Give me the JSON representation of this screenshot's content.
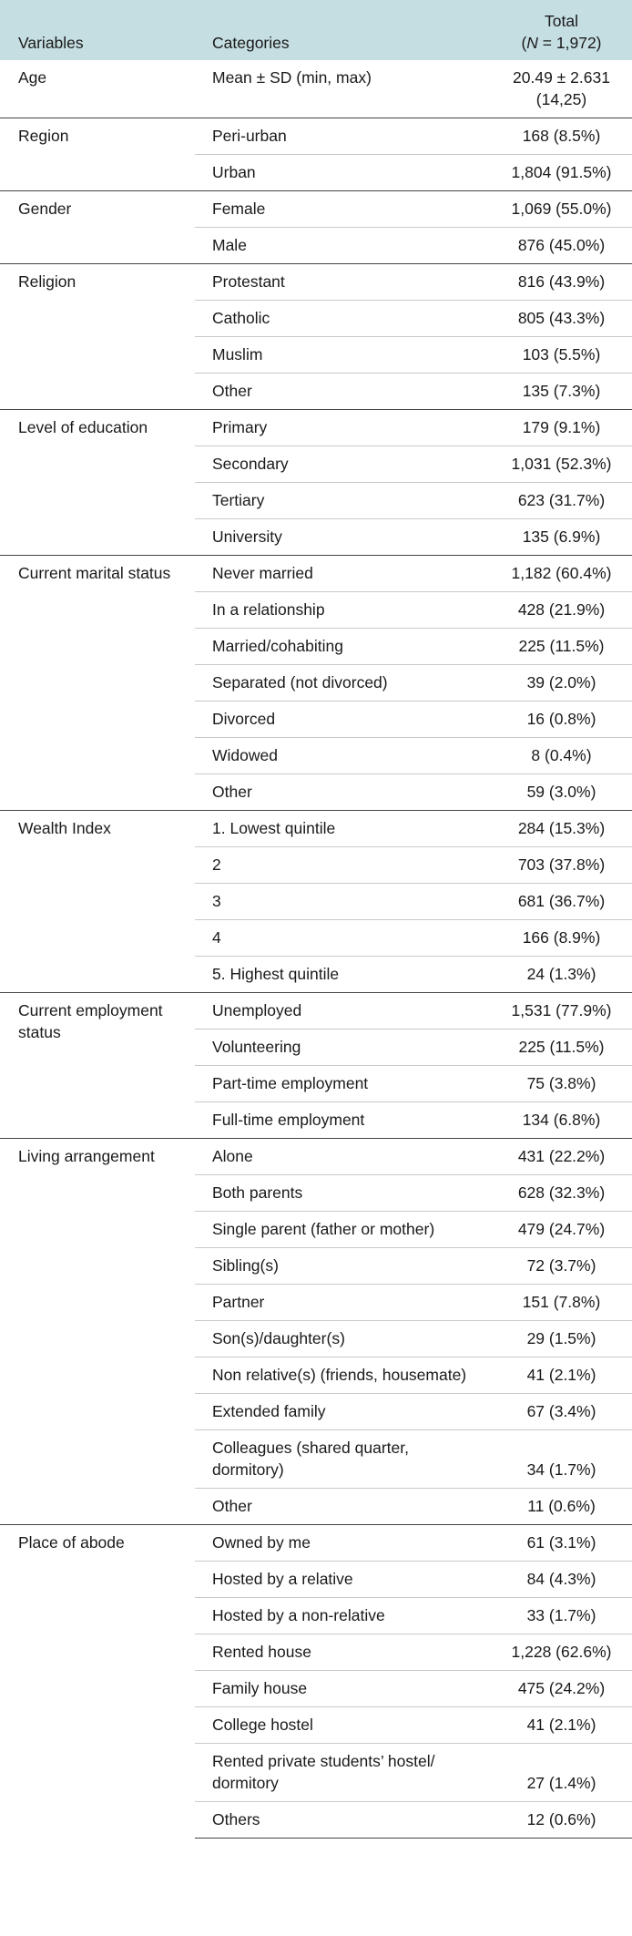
{
  "header": {
    "variables": "Variables",
    "categories": "Categories",
    "total_line1": "Total",
    "total_n_open": "(",
    "total_n_symbol": "N",
    "total_n_rest": " = 1,972)"
  },
  "groups": [
    {
      "variable": "Age",
      "rows": [
        {
          "category": "Mean ± SD (min, max)",
          "value": "20.49 ± 2.631 (14,25)"
        }
      ]
    },
    {
      "variable": "Region",
      "rows": [
        {
          "category": "Peri-urban",
          "value": "168 (8.5%)"
        },
        {
          "category": "Urban",
          "value": "1,804 (91.5%)"
        }
      ]
    },
    {
      "variable": "Gender",
      "rows": [
        {
          "category": "Female",
          "value": "1,069 (55.0%)"
        },
        {
          "category": "Male",
          "value": "876 (45.0%)"
        }
      ]
    },
    {
      "variable": "Religion",
      "rows": [
        {
          "category": "Protestant",
          "value": "816 (43.9%)"
        },
        {
          "category": "Catholic",
          "value": "805 (43.3%)"
        },
        {
          "category": "Muslim",
          "value": "103 (5.5%)"
        },
        {
          "category": "Other",
          "value": "135 (7.3%)"
        }
      ]
    },
    {
      "variable": "Level of education",
      "rows": [
        {
          "category": "Primary",
          "value": "179 (9.1%)"
        },
        {
          "category": "Secondary",
          "value": "1,031 (52.3%)"
        },
        {
          "category": "Tertiary",
          "value": "623 (31.7%)"
        },
        {
          "category": "University",
          "value": "135 (6.9%)"
        }
      ]
    },
    {
      "variable": "Current marital status",
      "rows": [
        {
          "category": "Never married",
          "value": "1,182 (60.4%)"
        },
        {
          "category": "In a relationship",
          "value": "428 (21.9%)"
        },
        {
          "category": "Married/cohabiting",
          "value": "225 (11.5%)"
        },
        {
          "category": "Separated (not divorced)",
          "value": "39 (2.0%)"
        },
        {
          "category": "Divorced",
          "value": "16 (0.8%)"
        },
        {
          "category": "Widowed",
          "value": "8 (0.4%)"
        },
        {
          "category": "Other",
          "value": "59 (3.0%)"
        }
      ]
    },
    {
      "variable": "Wealth Index",
      "rows": [
        {
          "category": "1. Lowest quintile",
          "value": "284 (15.3%)"
        },
        {
          "category": "2",
          "value": "703 (37.8%)"
        },
        {
          "category": "3",
          "value": "681 (36.7%)"
        },
        {
          "category": "4",
          "value": "166 (8.9%)"
        },
        {
          "category": "5. Highest quintile",
          "value": "24 (1.3%)"
        }
      ]
    },
    {
      "variable": "Current employment status",
      "rows": [
        {
          "category": "Unemployed",
          "value": "1,531 (77.9%)"
        },
        {
          "category": "Volunteering",
          "value": "225 (11.5%)"
        },
        {
          "category": "Part-time employment",
          "value": "75 (3.8%)"
        },
        {
          "category": "Full-time employment",
          "value": "134 (6.8%)"
        }
      ]
    },
    {
      "variable": "Living arrangement",
      "rows": [
        {
          "category": "Alone",
          "value": "431 (22.2%)"
        },
        {
          "category": "Both parents",
          "value": "628 (32.3%)"
        },
        {
          "category": "Single parent (father or mother)",
          "value": "479 (24.7%)"
        },
        {
          "category": "Sibling(s)",
          "value": "72 (3.7%)"
        },
        {
          "category": "Partner",
          "value": "151 (7.8%)"
        },
        {
          "category": "Son(s)/daughter(s)",
          "value": "29 (1.5%)"
        },
        {
          "category": "Non relative(s) (friends, housemate)",
          "value": "41 (2.1%)"
        },
        {
          "category": "Extended family",
          "value": "67 (3.4%)"
        },
        {
          "category": "Colleagues (shared quarter, dormitory)",
          "value": "34 (1.7%)"
        },
        {
          "category": "Other",
          "value": "11 (0.6%)"
        }
      ]
    },
    {
      "variable": "Place of abode",
      "rows": [
        {
          "category": "Owned by me",
          "value": "61 (3.1%)"
        },
        {
          "category": "Hosted by a relative",
          "value": "84 (4.3%)"
        },
        {
          "category": "Hosted by a non-relative",
          "value": "33 (1.7%)"
        },
        {
          "category": "Rented house",
          "value": "1,228 (62.6%)"
        },
        {
          "category": "Family house",
          "value": "475 (24.2%)"
        },
        {
          "category": "College hostel",
          "value": "41 (2.1%)"
        },
        {
          "category": "Rented private students’ hostel/ dormitory",
          "value": "27 (1.4%)"
        },
        {
          "category": "Others",
          "value": "12 (0.6%)"
        }
      ]
    }
  ]
}
